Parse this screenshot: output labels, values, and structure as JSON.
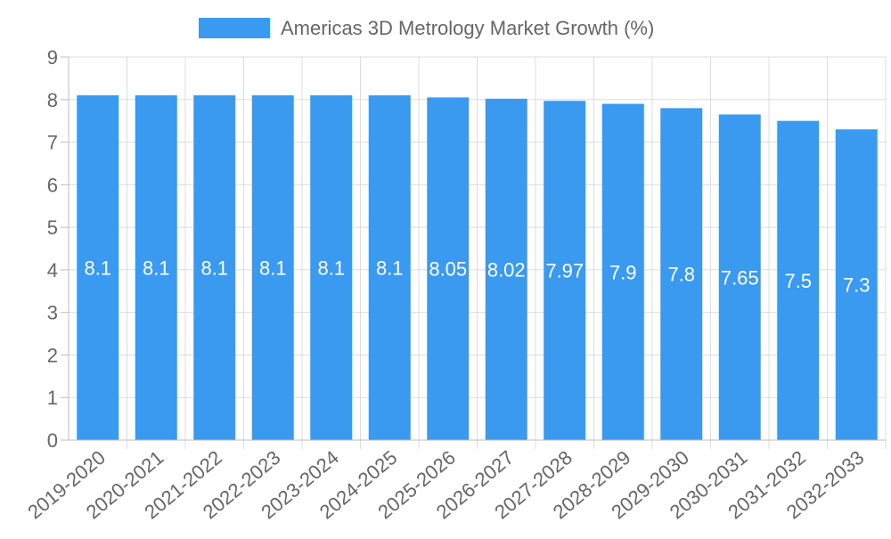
{
  "colors": {
    "bar": "#3a9af0",
    "grid": "#dcdcdc",
    "axis": "#bdbdbd",
    "text": "#666666",
    "label": "#ffffff"
  },
  "chart_data": {
    "type": "bar",
    "title": "",
    "xlabel": "",
    "ylabel": "",
    "legend": {
      "position": "top-center",
      "entries": [
        "Americas 3D Metrology Market Growth (%)"
      ]
    },
    "ylim": [
      0,
      9
    ],
    "yticks": [
      "0",
      "1",
      "2",
      "3",
      "4",
      "5",
      "6",
      "7",
      "8",
      "9"
    ],
    "grid": true,
    "categories": [
      "2019-2020",
      "2020-2021",
      "2021-2022",
      "2022-2023",
      "2023-2024",
      "2024-2025",
      "2025-2026",
      "2026-2027",
      "2027-2028",
      "2028-2029",
      "2029-2030",
      "2030-2031",
      "2031-2032",
      "2032-2033"
    ],
    "series": [
      {
        "name": "Americas 3D Metrology Market Growth (%)",
        "values": [
          8.1,
          8.1,
          8.1,
          8.1,
          8.1,
          8.1,
          8.05,
          8.02,
          7.97,
          7.9,
          7.8,
          7.65,
          7.5,
          7.3
        ],
        "value_labels": [
          "8.1",
          "8.1",
          "8.1",
          "8.1",
          "8.1",
          "8.1",
          "8.05",
          "8.02",
          "7.97",
          "7.9",
          "7.8",
          "7.65",
          "7.5",
          "7.3"
        ]
      }
    ]
  }
}
